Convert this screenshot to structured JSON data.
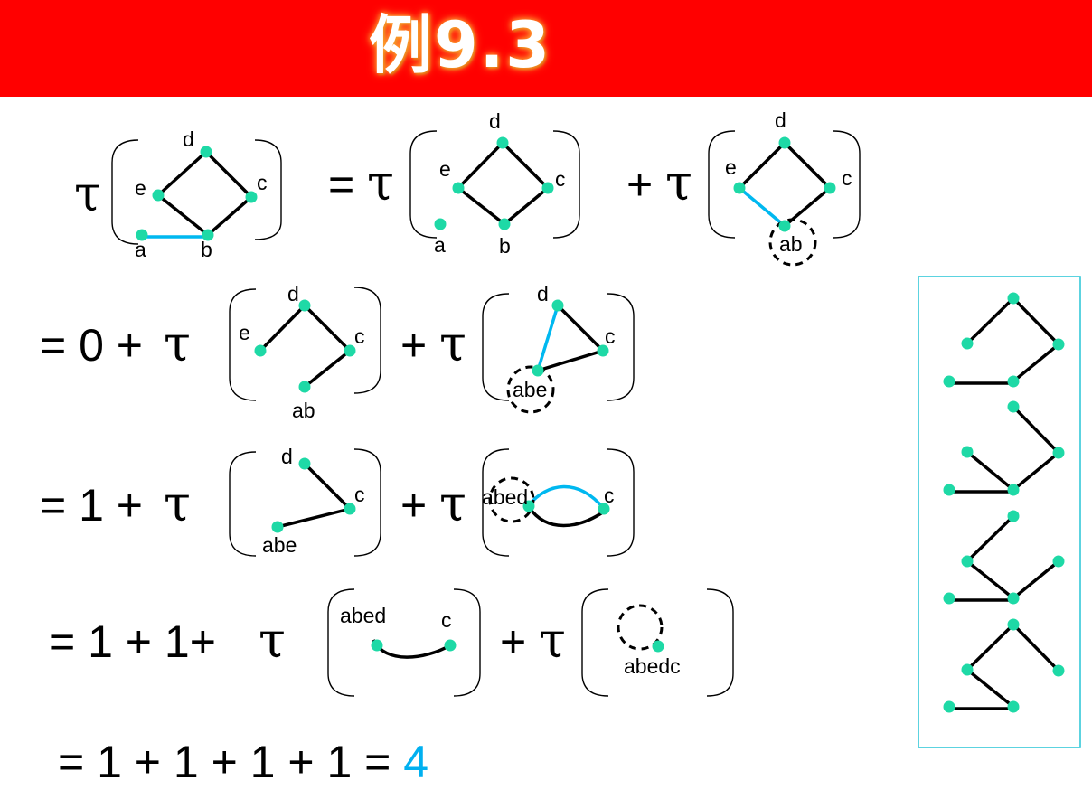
{
  "title": "例9.3",
  "symbols": {
    "tau": "τ",
    "eq": "=",
    "plus": "+"
  },
  "equation": {
    "row2_prefix": "= 0 +",
    "row3_prefix": "= 1 +",
    "row4_prefix": "= 1 + 1+",
    "final": "= 1 + 1 + 1 + 1 =",
    "answer": "4"
  },
  "vertex_labels": {
    "a": "a",
    "b": "b",
    "c": "c",
    "d": "d",
    "e": "e",
    "ab": "ab",
    "abe": "abe",
    "abed": "abed",
    "abedc": "abedc"
  },
  "colors": {
    "title_bar": "#ff0000",
    "node": "#1ed9a6",
    "highlight_edge": "#00b8f0",
    "answer": "#00b0f0",
    "tree_frame": "#33c8d8"
  }
}
